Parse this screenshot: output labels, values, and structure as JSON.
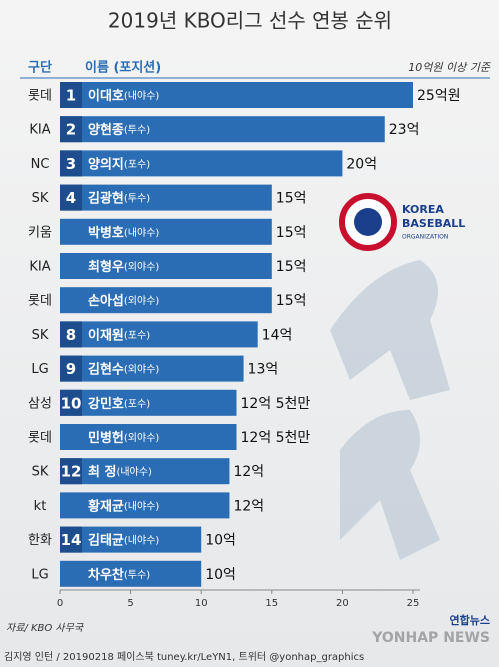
{
  "chart_data": {
    "type": "bar",
    "title": "2019년 KBO리그 선수 연봉 순위",
    "team_header": "구단",
    "name_header": "이름 (포지션)",
    "note": "10억원 이상 기준",
    "categories": [
      "롯데",
      "KIA",
      "NC",
      "SK",
      "키움",
      "KIA",
      "롯데",
      "SK",
      "LG",
      "삼성",
      "롯데",
      "SK",
      "kt",
      "한화",
      "LG"
    ],
    "ranks": [
      "1",
      "2",
      "3",
      "4",
      null,
      null,
      null,
      "8",
      "9",
      "10",
      null,
      "12",
      null,
      "14",
      null
    ],
    "names": [
      "이대호",
      "양현종",
      "양의지",
      "김광현",
      "박병호",
      "최형우",
      "손아섭",
      "이재원",
      "김현수",
      "강민호",
      "민병헌",
      "최 정",
      "황재균",
      "김태균",
      "차우찬"
    ],
    "positions": [
      "(내야수)",
      "(투수)",
      "(포수)",
      "(투수)",
      "(내야수)",
      "(외야수)",
      "(외야수)",
      "(포수)",
      "(외야수)",
      "(포수)",
      "(외야수)",
      "(내야수)",
      "(내야수)",
      "(내야수)",
      "(투수)"
    ],
    "values": [
      25,
      23,
      20,
      15,
      15,
      15,
      15,
      14,
      13,
      12.5,
      12.5,
      12,
      12,
      10,
      10
    ],
    "value_labels": [
      "25억원",
      "23억",
      "20억",
      "15억",
      "15억",
      "15억",
      "15억",
      "14억",
      "13억",
      "12억 5천만",
      "12억 5천만",
      "12억",
      "12억",
      "10억",
      "10억"
    ],
    "xlim": [
      0,
      25
    ],
    "xticks": [
      0,
      5,
      10,
      15,
      20,
      25
    ],
    "color": "#2a6db4"
  },
  "logo": {
    "line1": "KOREA",
    "line2": "BASEBALL",
    "line3": "ORGANIZATION"
  },
  "source": "자료/ KBO 사무국",
  "credit": "김지영 인턴 / 20190218 페이스북 tuney.kr/LeYN1, 트위터 @yonhap_graphics",
  "watermark": {
    "brand": "연합뉴스",
    "english": "YONHAP NEWS"
  }
}
